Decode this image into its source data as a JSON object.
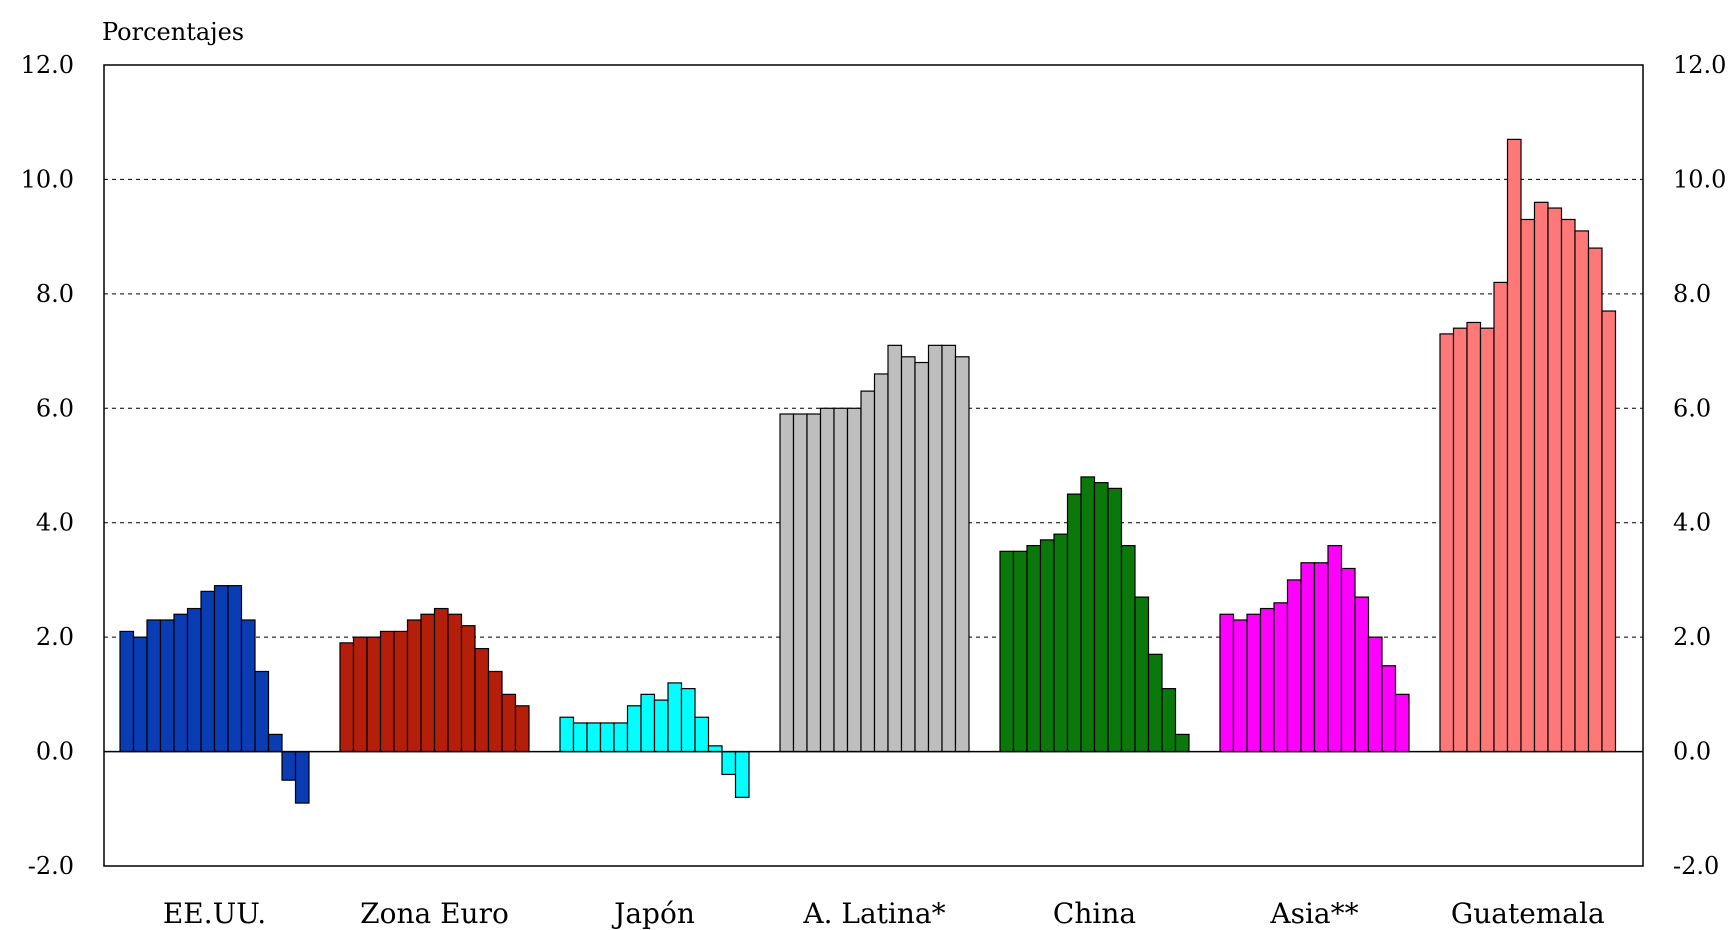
{
  "chart_data": {
    "type": "bar",
    "ylabel": "Porcentajes",
    "ylim": [
      -2.0,
      12.0
    ],
    "yticks": [
      "-2.0",
      "0.0",
      "2.0",
      "4.0",
      "6.0",
      "8.0",
      "10.0",
      "12.0"
    ],
    "grid": "dashed horizontal",
    "dual_y_axis": true,
    "groups": [
      {
        "name": "EE.UU.",
        "color": "#0a3cb4",
        "values": [
          2.1,
          2.0,
          2.3,
          2.3,
          2.4,
          2.5,
          2.8,
          2.9,
          2.9,
          2.3,
          1.4,
          0.3,
          -0.5,
          -0.9
        ]
      },
      {
        "name": "Zona Euro",
        "color": "#b41e0a",
        "values": [
          1.9,
          2.0,
          2.0,
          2.1,
          2.1,
          2.3,
          2.4,
          2.5,
          2.4,
          2.2,
          1.8,
          1.4,
          1.0,
          0.8
        ]
      },
      {
        "name": "Japón",
        "color": "#00ffff",
        "values": [
          0.6,
          0.5,
          0.5,
          0.5,
          0.5,
          0.8,
          1.0,
          0.9,
          1.2,
          1.1,
          0.6,
          0.1,
          -0.4,
          -0.8
        ]
      },
      {
        "name": "A. Latina*",
        "color": "#bebebe",
        "values": [
          5.9,
          5.9,
          5.9,
          6.0,
          6.0,
          6.0,
          6.3,
          6.6,
          7.1,
          6.9,
          6.8,
          7.1,
          7.1,
          6.9
        ]
      },
      {
        "name": "China",
        "color": "#0a780a",
        "values": [
          3.5,
          3.5,
          3.6,
          3.7,
          3.8,
          4.5,
          4.8,
          4.7,
          4.6,
          3.6,
          2.7,
          1.7,
          1.1,
          0.3
        ]
      },
      {
        "name": "Asia**",
        "color": "#ff00ff",
        "values": [
          2.4,
          2.3,
          2.4,
          2.5,
          2.6,
          3.0,
          3.3,
          3.3,
          3.6,
          3.2,
          2.7,
          2.0,
          1.5,
          1.0
        ]
      },
      {
        "name": "Guatemala",
        "color": "#ff7878",
        "values": [
          7.3,
          7.4,
          7.5,
          7.4,
          8.2,
          10.7,
          9.3,
          9.6,
          9.5,
          9.3,
          9.1,
          8.8,
          7.7
        ]
      }
    ]
  }
}
